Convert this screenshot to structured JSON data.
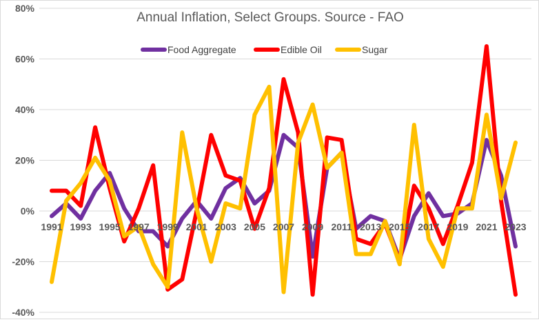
{
  "chart_data": {
    "type": "line",
    "title": "Annual Inflation, Select Groups. Source - FAO",
    "xlabel": "",
    "ylabel": "",
    "ylim": [
      -40,
      80
    ],
    "yticks": [
      -40,
      -20,
      0,
      20,
      40,
      60,
      80
    ],
    "ytick_labels": [
      "-40%",
      "-20%",
      "0%",
      "20%",
      "40%",
      "60%",
      "80%"
    ],
    "x": [
      1991,
      1992,
      1993,
      1994,
      1995,
      1996,
      1997,
      1998,
      1999,
      2000,
      2001,
      2002,
      2003,
      2004,
      2005,
      2006,
      2007,
      2008,
      2009,
      2010,
      2011,
      2012,
      2013,
      2014,
      2015,
      2016,
      2017,
      2018,
      2019,
      2020,
      2021,
      2022,
      2023
    ],
    "xtick_labels": [
      "1991",
      "1993",
      "1995",
      "1997",
      "1999",
      "2001",
      "2003",
      "2005",
      "2007",
      "2009",
      "2011",
      "2013",
      "2015",
      "2017",
      "2019",
      "2021",
      "2023"
    ],
    "grid": "horizontal",
    "legend_position": "top",
    "series": [
      {
        "name": "Food Aggregate",
        "color": "#7030a0",
        "values": [
          -2,
          3,
          -3,
          8,
          15,
          1,
          -8,
          -8,
          -14,
          -3,
          4,
          -3,
          9,
          13,
          3,
          8,
          30,
          25,
          -18,
          17,
          23,
          -7,
          -2,
          -4,
          -19,
          -2,
          7,
          -2,
          -1,
          3,
          28,
          14,
          -14
        ]
      },
      {
        "name": "Edible Oil",
        "color": "#ff0000",
        "values": [
          8,
          8,
          2,
          33,
          9,
          -12,
          1,
          18,
          -31,
          -27,
          0,
          30,
          14,
          12,
          -7,
          9,
          52,
          31,
          -33,
          29,
          28,
          -11,
          -13,
          -5,
          -20,
          10,
          1,
          -13,
          2,
          19,
          65,
          4,
          -33
        ]
      },
      {
        "name": "Sugar",
        "color": "#ffc000",
        "values": [
          -28,
          4,
          11,
          21,
          12,
          -10,
          -6,
          -21,
          -30,
          31,
          1,
          -20,
          3,
          1,
          38,
          49,
          -32,
          27,
          42,
          17,
          23,
          -17,
          -17,
          -4,
          -21,
          34,
          -11,
          -22,
          1,
          1,
          38,
          5,
          27
        ]
      }
    ]
  }
}
